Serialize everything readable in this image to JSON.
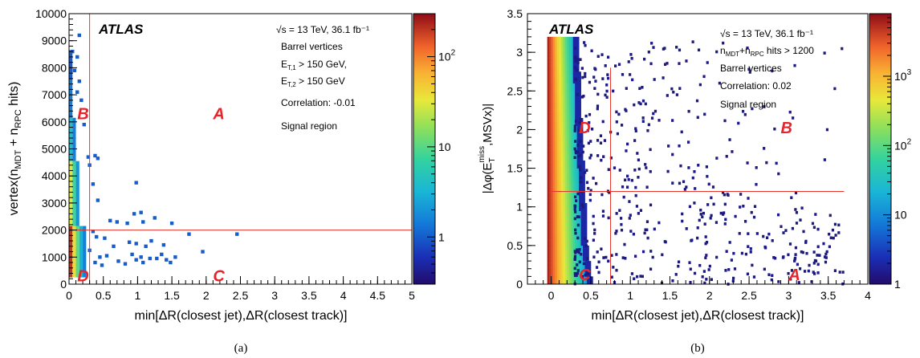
{
  "chart_data": [
    {
      "type": "heatmap",
      "panel_label": "(a)",
      "xlabel": "min[ΔR(closest jet),ΔR(closest track)]",
      "ylabel_parts": [
        "vertex(n",
        "MDT",
        " + n",
        "RPC",
        " hits)"
      ],
      "xlim": [
        0,
        5
      ],
      "ylim": [
        0,
        10000
      ],
      "x_ticks": [
        "0",
        "0.5",
        "1",
        "1.5",
        "2",
        "2.5",
        "3",
        "3.5",
        "4",
        "4.5",
        "5"
      ],
      "y_ticks": [
        "0",
        "1000",
        "2000",
        "3000",
        "4000",
        "5000",
        "6000",
        "7000",
        "8000",
        "9000",
        "10000"
      ],
      "colorbar": {
        "scale": "log",
        "min": 0.3,
        "max": 300,
        "labels": [
          "1",
          "10",
          "10^2"
        ]
      },
      "experiment": "ATLAS",
      "annotations": [
        "√s = 13 TeV, 36.1 fb⁻¹",
        "Barrel vertices",
        "E_T,1 > 150 GeV,",
        "E_T,2 > 150 GeV",
        "Correlation: -0.01",
        "Signal region"
      ],
      "cut_lines": {
        "x": 0.3,
        "y": 2000
      },
      "region_labels": [
        {
          "text": "A",
          "x": 2.1,
          "y": 6100
        },
        {
          "text": "B",
          "x": 0.12,
          "y": 6100
        },
        {
          "text": "C",
          "x": 2.1,
          "y": 100
        },
        {
          "text": "D",
          "x": 0.12,
          "y": 100
        }
      ],
      "dense_cells": [
        {
          "x": 0.025,
          "y": 250,
          "w": 0.05,
          "h": 1900,
          "v": 200
        },
        {
          "x": 0.075,
          "y": 250,
          "w": 0.05,
          "h": 1900,
          "v": 40
        },
        {
          "x": 0.125,
          "y": 250,
          "w": 0.05,
          "h": 1900,
          "v": 10
        },
        {
          "x": 0.175,
          "y": 250,
          "w": 0.05,
          "h": 1900,
          "v": 3
        },
        {
          "x": 0.225,
          "y": 250,
          "w": 0.05,
          "h": 1900,
          "v": 1.5
        },
        {
          "x": 0.025,
          "y": 2150,
          "w": 0.05,
          "h": 2400,
          "v": 30
        },
        {
          "x": 0.075,
          "y": 2150,
          "w": 0.05,
          "h": 2400,
          "v": 8
        },
        {
          "x": 0.125,
          "y": 2150,
          "w": 0.05,
          "h": 2400,
          "v": 2
        },
        {
          "x": 0.025,
          "y": 4550,
          "w": 0.05,
          "h": 1600,
          "v": 4
        },
        {
          "x": 0.075,
          "y": 4550,
          "w": 0.05,
          "h": 1600,
          "v": 1.5
        },
        {
          "x": 0.025,
          "y": 6150,
          "w": 0.05,
          "h": 1400,
          "v": 1.5
        },
        {
          "x": 0.025,
          "y": 7550,
          "w": 0.05,
          "h": 1100,
          "v": 1
        }
      ],
      "sparse_points": [
        [
          0.15,
          9200
        ],
        [
          0.05,
          8600
        ],
        [
          0.12,
          8400
        ],
        [
          0.08,
          7900
        ],
        [
          0.15,
          7500
        ],
        [
          0.12,
          7100
        ],
        [
          0.18,
          6800
        ],
        [
          0.22,
          5900
        ],
        [
          0.28,
          4700
        ],
        [
          0.38,
          4750
        ],
        [
          0.42,
          4650
        ],
        [
          0.3,
          4400
        ],
        [
          0.35,
          3700
        ],
        [
          0.42,
          3100
        ],
        [
          0.98,
          3750
        ],
        [
          0.95,
          2600
        ],
        [
          1.05,
          2650
        ],
        [
          1.08,
          2300
        ],
        [
          1.25,
          2450
        ],
        [
          0.6,
          2350
        ],
        [
          0.7,
          2300
        ],
        [
          0.85,
          2250
        ],
        [
          1.5,
          2250
        ],
        [
          2.45,
          1850
        ],
        [
          1.75,
          1850
        ],
        [
          0.35,
          1950
        ],
        [
          0.4,
          1750
        ],
        [
          0.52,
          1700
        ],
        [
          0.65,
          1400
        ],
        [
          0.88,
          1550
        ],
        [
          0.98,
          1500
        ],
        [
          1.12,
          1400
        ],
        [
          1.2,
          1600
        ],
        [
          1.38,
          1450
        ],
        [
          1.95,
          1200
        ],
        [
          0.3,
          1250
        ],
        [
          0.45,
          1000
        ],
        [
          0.55,
          1050
        ],
        [
          0.72,
          850
        ],
        [
          0.82,
          750
        ],
        [
          0.98,
          900
        ],
        [
          1.05,
          1000
        ],
        [
          1.08,
          800
        ],
        [
          1.28,
          950
        ],
        [
          1.42,
          900
        ],
        [
          1.55,
          1000
        ],
        [
          1.48,
          800
        ],
        [
          1.35,
          1100
        ],
        [
          0.38,
          800
        ],
        [
          0.48,
          700
        ],
        [
          0.92,
          1100
        ],
        [
          1.18,
          950
        ]
      ]
    },
    {
      "type": "heatmap",
      "panel_label": "(b)",
      "xlabel": "min[ΔR(closest jet),ΔR(closest track)]",
      "ylabel_parts": [
        "|Δφ(E",
        "T",
        "miss",
        ",MSVx)|"
      ],
      "xlim": [
        -0.3,
        4
      ],
      "ylim": [
        0,
        3.5
      ],
      "x_ticks": [
        "0",
        "0.5",
        "1",
        "1.5",
        "2",
        "2.5",
        "3",
        "3.5",
        "4"
      ],
      "y_ticks": [
        "0",
        "0.5",
        "1",
        "1.5",
        "2",
        "2.5",
        "3",
        "3.5"
      ],
      "colorbar": {
        "scale": "log",
        "min": 1,
        "max": 8000,
        "labels": [
          "1",
          "10",
          "10^2",
          "10^3"
        ]
      },
      "experiment": "ATLAS",
      "annotations": [
        "√s = 13 TeV, 36.1 fb⁻¹",
        "n_MDT+n_RPC hits > 1200",
        "Barrel vertices",
        "Correlation: 0.02",
        "Signal region"
      ],
      "cut_lines": {
        "x": 0.75,
        "y": 1.2,
        "x_line_top": 2.8
      },
      "region_labels": [
        {
          "text": "A",
          "x": 3.0,
          "y": 0.05
        },
        {
          "text": "B",
          "x": 2.9,
          "y": 1.95
        },
        {
          "text": "C",
          "x": 0.35,
          "y": 0.05
        },
        {
          "text": "D",
          "x": 0.35,
          "y": 1.95
        }
      ]
    }
  ]
}
